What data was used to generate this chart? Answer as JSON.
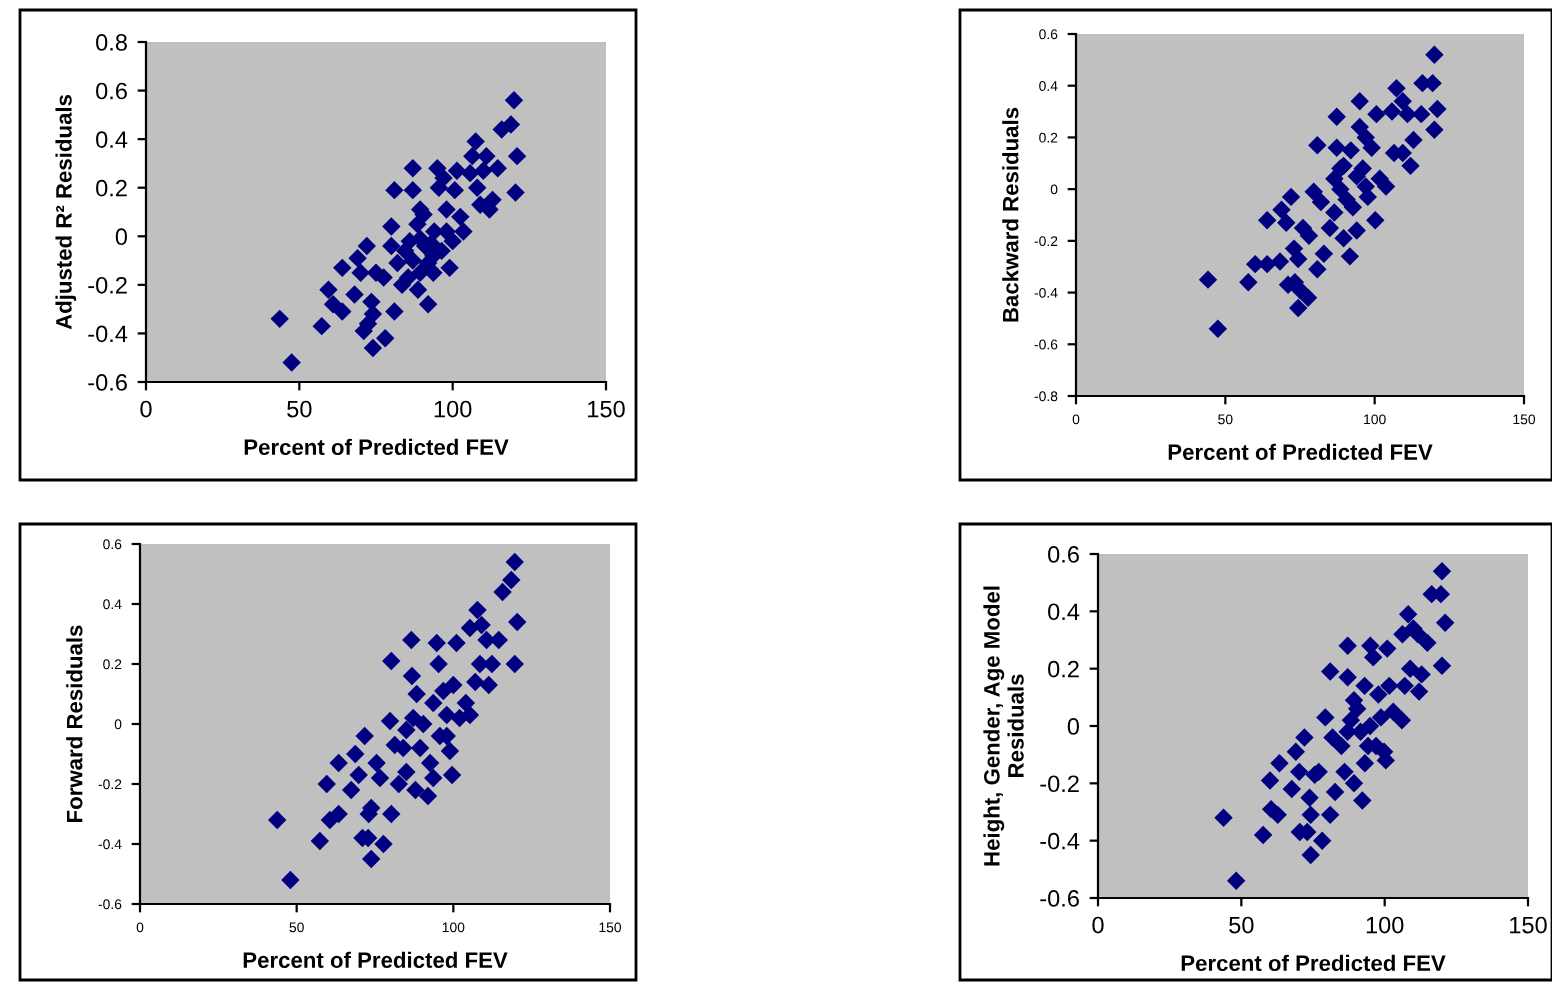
{
  "chart_data": [
    {
      "type": "scatter",
      "xlabel": "Percent of Predicted FEV",
      "ylabel": "Adjusted R² Residuals",
      "xlim": [
        0,
        150
      ],
      "ylim": [
        -0.6,
        0.8
      ],
      "xticks": [
        0,
        50,
        100,
        150
      ],
      "yticks": [
        -0.6,
        -0.4,
        -0.2,
        0,
        0.2,
        0.4,
        0.6,
        0.8
      ],
      "marker": "diamond",
      "grid": false,
      "legend": false,
      "series": [
        {
          "color": "#000080",
          "x": [
            43.6,
            47.5,
            57.3,
            59.5,
            61,
            64,
            64,
            68,
            69,
            70,
            72,
            71,
            72.4,
            73.5,
            74,
            74,
            75,
            77.5,
            78,
            80,
            80,
            81,
            81,
            82,
            83.5,
            84.5,
            85.5,
            87,
            87,
            87,
            88.5,
            88.7,
            89.4,
            90.5,
            92,
            92,
            93,
            93.7,
            94,
            95,
            95.5,
            96.4,
            97,
            98,
            99,
            100,
            100.7,
            101.4,
            102.5,
            103.5,
            105.7,
            106.4,
            107.5,
            108,
            109,
            110,
            111,
            112,
            113,
            114.7,
            116,
            119,
            120,
            120.5,
            121,
            89.4,
            98,
            93.7,
            86,
            91,
            89.4
          ],
          "values": [
            -0.34,
            -0.52,
            -0.37,
            -0.22,
            -0.28,
            -0.31,
            -0.13,
            -0.24,
            -0.09,
            -0.15,
            -0.04,
            -0.39,
            -0.36,
            -0.27,
            -0.32,
            -0.46,
            -0.15,
            -0.17,
            -0.42,
            -0.04,
            0.04,
            0.19,
            -0.31,
            -0.11,
            -0.2,
            -0.06,
            -0.17,
            0.19,
            0.28,
            -0.1,
            0.05,
            -0.22,
            -0.01,
            0.09,
            -0.28,
            -0.11,
            -0.03,
            -0.15,
            0.02,
            0.28,
            0.2,
            -0.06,
            0.24,
            0.11,
            -0.13,
            -0.02,
            0.19,
            0.27,
            0.08,
            0.02,
            0.26,
            0.33,
            0.39,
            0.2,
            0.13,
            0.27,
            0.33,
            0.11,
            0.15,
            0.28,
            0.44,
            0.46,
            0.56,
            0.18,
            0.33,
            0.11,
            0.02,
            -0.08,
            -0.02,
            -0.04,
            -0.15
          ]
        }
      ]
    },
    {
      "type": "scatter",
      "xlabel": "Percent of Predicted FEV",
      "ylabel": "Backward Residuals",
      "xlim": [
        0,
        150
      ],
      "ylim": [
        -0.8,
        0.6
      ],
      "xticks": [
        0,
        50,
        100,
        150
      ],
      "yticks": [
        -0.8,
        -0.6,
        -0.4,
        -0.2,
        0,
        0.2,
        0.4,
        0.6
      ],
      "marker": "diamond",
      "grid": false,
      "legend": false,
      "series": [
        {
          "color": "#000080",
          "x": [
            44.2,
            47.5,
            57.7,
            60,
            64,
            64,
            68.3,
            68.8,
            70.4,
            72,
            71,
            73,
            73.3,
            74.4,
            74.4,
            75,
            76,
            77.7,
            78,
            79.6,
            80.8,
            80.8,
            82,
            83,
            85,
            86.5,
            87.3,
            87.3,
            88.5,
            89.6,
            89.6,
            91.7,
            92,
            92.7,
            94,
            95,
            95,
            96,
            97,
            97.7,
            99,
            100.2,
            100.6,
            101.7,
            103.8,
            105.8,
            106.5,
            107.3,
            109.4,
            109.4,
            111,
            112,
            113,
            115.6,
            116,
            119.4,
            120,
            120,
            121,
            88.5,
            94,
            86.5,
            97,
            90.6
          ],
          "values": [
            -0.35,
            -0.54,
            -0.36,
            -0.29,
            -0.29,
            -0.12,
            -0.28,
            -0.08,
            -0.13,
            -0.03,
            -0.37,
            -0.23,
            -0.36,
            -0.27,
            -0.46,
            -0.39,
            -0.15,
            -0.42,
            -0.18,
            -0.01,
            0.17,
            -0.31,
            -0.05,
            -0.25,
            -0.15,
            -0.09,
            0.28,
            0.16,
            0.0,
            -0.19,
            0.09,
            -0.26,
            0.15,
            -0.07,
            -0.16,
            0.34,
            0.24,
            0.08,
            0.2,
            -0.03,
            0.16,
            -0.12,
            0.29,
            0.04,
            0.01,
            0.3,
            0.14,
            0.39,
            0.34,
            0.14,
            0.29,
            0.09,
            0.19,
            0.29,
            0.41,
            0.41,
            0.52,
            0.23,
            0.31,
            0.08,
            0.05,
            0.04,
            0.01,
            -0.04
          ]
        }
      ]
    },
    {
      "type": "scatter",
      "xlabel": "Percent of Predicted FEV",
      "ylabel": "Forward Residuals",
      "xlim": [
        0,
        150
      ],
      "ylim": [
        -0.6,
        0.6
      ],
      "xticks": [
        0,
        50,
        100,
        150
      ],
      "yticks": [
        -0.6,
        -0.4,
        -0.2,
        0,
        0.2,
        0.4,
        0.6
      ],
      "marker": "diamond",
      "grid": false,
      "legend": false,
      "series": [
        {
          "color": "#000080",
          "x": [
            43.8,
            48,
            57.4,
            59.6,
            60.6,
            63.4,
            63.4,
            67.4,
            68.7,
            69.8,
            71.7,
            71,
            72.8,
            73,
            73.8,
            73.8,
            75.5,
            76.6,
            77.7,
            79.8,
            80.2,
            80.2,
            81.3,
            82.6,
            84,
            85,
            86.6,
            86.8,
            87.2,
            87.9,
            88.3,
            90.4,
            91.9,
            92.6,
            93.6,
            94.7,
            95.3,
            95.7,
            96.8,
            97.9,
            98.9,
            99.6,
            100,
            101,
            102,
            104,
            105.3,
            105.3,
            107,
            107.7,
            108.5,
            109,
            110.6,
            111.3,
            112.3,
            114.5,
            115.7,
            118.5,
            119.6,
            119.6,
            120.4,
            89.4,
            93.6,
            85,
            97.9
          ],
          "values": [
            -0.32,
            -0.52,
            -0.39,
            -0.2,
            -0.32,
            -0.3,
            -0.13,
            -0.22,
            -0.1,
            -0.17,
            -0.04,
            -0.38,
            -0.38,
            -0.3,
            -0.28,
            -0.45,
            -0.13,
            -0.18,
            -0.4,
            0.01,
            0.21,
            -0.3,
            -0.07,
            -0.2,
            -0.08,
            -0.16,
            0.28,
            0.16,
            0.02,
            -0.22,
            0.1,
            0.0,
            -0.24,
            -0.13,
            -0.18,
            0.27,
            0.2,
            -0.04,
            0.11,
            0.03,
            -0.09,
            -0.17,
            0.13,
            0.27,
            0.02,
            0.07,
            0.03,
            0.32,
            0.14,
            0.38,
            0.2,
            0.33,
            0.28,
            0.13,
            0.2,
            0.28,
            0.44,
            0.48,
            0.54,
            0.2,
            0.34,
            -0.08,
            0.07,
            -0.02,
            -0.04
          ]
        }
      ]
    },
    {
      "type": "scatter",
      "xlabel": "Percent of Predicted FEV",
      "ylabel": "Height, Gender, Age Model\nResiduals",
      "xlim": [
        0,
        150
      ],
      "ylim": [
        -0.6,
        0.6
      ],
      "xticks": [
        0,
        50,
        100,
        150
      ],
      "yticks": [
        -0.6,
        -0.4,
        -0.2,
        0,
        0.2,
        0.4,
        0.6
      ],
      "marker": "diamond",
      "grid": false,
      "legend": false,
      "series": [
        {
          "color": "#000080",
          "x": [
            43.8,
            48.2,
            57.6,
            60,
            60.4,
            62.7,
            63.3,
            67.6,
            69,
            70.2,
            72,
            70.4,
            73,
            73.8,
            74.2,
            74.2,
            75.6,
            77,
            78.2,
            79.3,
            81,
            81,
            81.8,
            82.7,
            84.9,
            86,
            87.1,
            87.1,
            88.2,
            89.3,
            89.3,
            91.6,
            92.2,
            93.1,
            94.2,
            95,
            96,
            97,
            97.8,
            98.7,
            99.8,
            100.4,
            100.9,
            101.6,
            103,
            106,
            106.2,
            107,
            108.2,
            108.9,
            110,
            111.6,
            112,
            112.9,
            114.9,
            116.4,
            119.6,
            120,
            120,
            121.1,
            90.4,
            94.9,
            87.1,
            93
          ],
          "values": [
            -0.32,
            -0.54,
            -0.38,
            -0.19,
            -0.29,
            -0.31,
            -0.13,
            -0.22,
            -0.09,
            -0.16,
            -0.04,
            -0.37,
            -0.37,
            -0.25,
            -0.31,
            -0.45,
            -0.17,
            -0.16,
            -0.4,
            0.03,
            0.19,
            -0.31,
            -0.04,
            -0.23,
            -0.07,
            -0.16,
            0.28,
            0.17,
            0.02,
            -0.2,
            0.09,
            -0.02,
            -0.26,
            -0.13,
            -0.07,
            0.28,
            0.24,
            -0.07,
            0.11,
            0.03,
            -0.09,
            -0.12,
            0.27,
            0.14,
            0.05,
            0.02,
            0.32,
            0.14,
            0.39,
            0.2,
            0.34,
            0.32,
            0.12,
            0.18,
            0.29,
            0.46,
            0.46,
            0.54,
            0.21,
            0.36,
            0.06,
            0.0,
            -0.02,
            0.14
          ]
        }
      ]
    }
  ]
}
